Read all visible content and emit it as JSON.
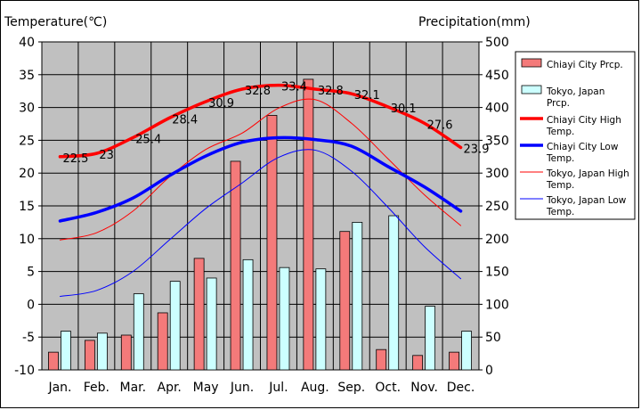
{
  "chart_data": {
    "type": "bar+line",
    "left_axis_label": "Temperature(℃)",
    "right_axis_label": "Precipitation(mm)",
    "categories": [
      "Jan.",
      "Feb.",
      "Mar.",
      "Apr.",
      "May",
      "Jun.",
      "Jul.",
      "Aug.",
      "Sep.",
      "Oct.",
      "Nov.",
      "Dec."
    ],
    "left_ylim": [
      -10,
      40
    ],
    "left_ticks": [
      40,
      35,
      30,
      25,
      20,
      15,
      10,
      5,
      0,
      -5,
      -10
    ],
    "right_ylim": [
      0,
      500
    ],
    "right_ticks": [
      500,
      450,
      400,
      350,
      300,
      250,
      200,
      150,
      100,
      50,
      0
    ],
    "bar_series": [
      {
        "name": "Chiayi City Prcp.",
        "color": "#f47a7a",
        "values": [
          27,
          45,
          53,
          87,
          170,
          318,
          388,
          443,
          211,
          31,
          22,
          27
        ]
      },
      {
        "name": "Tokyo, Japan Prcp.",
        "color": "#ccffff",
        "values": [
          59,
          56,
          116,
          135,
          140,
          168,
          156,
          154,
          225,
          235,
          97,
          59
        ]
      }
    ],
    "line_series": [
      {
        "name": "Chiayi City High Temp.",
        "color": "#ff0000",
        "width": 3.5,
        "values": [
          22.5,
          23,
          25.4,
          28.4,
          30.9,
          32.8,
          33.4,
          32.8,
          32.1,
          30.1,
          27.6,
          23.9
        ]
      },
      {
        "name": "Chiayi City Low Temp.",
        "color": "#0000ff",
        "width": 3.5,
        "values": [
          12.7,
          14.0,
          16.2,
          19.6,
          22.6,
          24.7,
          25.4,
          25.1,
          24.1,
          21.0,
          17.9,
          14.2
        ]
      },
      {
        "name": "Tokyo, Japan High Temp.",
        "color": "#ff0000",
        "width": 1,
        "values": [
          9.8,
          10.9,
          14.2,
          19.4,
          23.6,
          26.1,
          29.9,
          31.2,
          27.6,
          22.2,
          16.7,
          12.0
        ]
      },
      {
        "name": "Tokyo, Japan Low Temp.",
        "color": "#0000ff",
        "width": 1,
        "values": [
          1.2,
          2.1,
          5.0,
          9.8,
          14.6,
          18.5,
          22.4,
          23.5,
          20.3,
          14.8,
          8.8,
          3.9
        ]
      }
    ],
    "data_labels": [
      "22.5",
      "23",
      "25.4",
      "28.4",
      "30.9",
      "32.8",
      "33.4",
      "32.8",
      "32.1",
      "30.1",
      "27.6",
      "23.9"
    ]
  }
}
